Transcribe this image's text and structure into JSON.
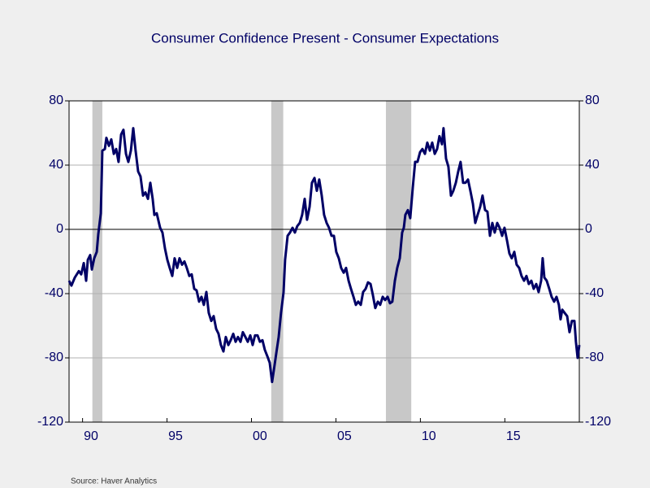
{
  "chart_data": {
    "type": "line",
    "title": "Consumer Confidence Present - Consumer Expectations",
    "source": "Source:  Haver Analytics",
    "x": [
      1989.2,
      1989.34,
      1989.54,
      1989.78,
      1989.92,
      1990.07,
      1990.21,
      1990.31,
      1990.45,
      1990.55,
      1990.69,
      1990.84,
      1990.93,
      1991.08,
      1991.17,
      1991.32,
      1991.41,
      1991.56,
      1991.7,
      1991.85,
      1991.99,
      1992.13,
      1992.28,
      1992.42,
      1992.57,
      1992.71,
      1992.86,
      1993.0,
      1993.14,
      1993.29,
      1993.43,
      1993.58,
      1993.72,
      1993.87,
      1994.01,
      1994.15,
      1994.25,
      1994.39,
      1994.59,
      1994.73,
      1994.88,
      1995.02,
      1995.16,
      1995.31,
      1995.45,
      1995.6,
      1995.74,
      1995.89,
      1996.03,
      1996.17,
      1996.32,
      1996.46,
      1996.61,
      1996.75,
      1996.9,
      1997.04,
      1997.18,
      1997.33,
      1997.47,
      1997.62,
      1997.76,
      1997.91,
      1998.05,
      1998.19,
      1998.34,
      1998.48,
      1998.63,
      1998.77,
      1998.92,
      1999.06,
      1999.2,
      1999.35,
      1999.49,
      1999.64,
      1999.78,
      1999.93,
      2000.07,
      2000.21,
      2000.36,
      2000.5,
      2000.65,
      2000.79,
      2000.94,
      2001.08,
      2001.22,
      2001.32,
      2001.47,
      2001.61,
      2001.75,
      2001.9,
      2001.99,
      2002.14,
      2002.28,
      2002.43,
      2002.57,
      2002.71,
      2002.86,
      2003.0,
      2003.15,
      2003.29,
      2003.44,
      2003.58,
      2003.73,
      2003.87,
      2004.01,
      2004.16,
      2004.3,
      2004.45,
      2004.59,
      2004.74,
      2004.88,
      2005.02,
      2005.17,
      2005.31,
      2005.46,
      2005.6,
      2005.75,
      2005.89,
      2006.04,
      2006.18,
      2006.32,
      2006.47,
      2006.61,
      2006.76,
      2006.9,
      2007.05,
      2007.19,
      2007.33,
      2007.48,
      2007.62,
      2007.77,
      2007.91,
      2008.06,
      2008.2,
      2008.34,
      2008.49,
      2008.63,
      2008.78,
      2008.92,
      2009.02,
      2009.11,
      2009.26,
      2009.4,
      2009.55,
      2009.69,
      2009.83,
      2009.98,
      2010.12,
      2010.27,
      2010.41,
      2010.56,
      2010.7,
      2010.85,
      2010.99,
      2011.13,
      2011.28,
      2011.37,
      2011.52,
      2011.66,
      2011.81,
      2011.95,
      2012.1,
      2012.24,
      2012.38,
      2012.53,
      2012.67,
      2012.82,
      2012.96,
      2013.11,
      2013.25,
      2013.39,
      2013.54,
      2013.68,
      2013.83,
      2013.97,
      2014.12,
      2014.26,
      2014.4,
      2014.55,
      2014.69,
      2014.84,
      2014.98,
      2015.13,
      2015.27,
      2015.41,
      2015.56,
      2015.7,
      2015.85,
      2015.99,
      2016.14,
      2016.28,
      2016.42,
      2016.57,
      2016.71,
      2016.86,
      2017.0,
      2017.15,
      2017.24,
      2017.34,
      2017.48,
      2017.63,
      2017.77,
      2017.92,
      2018.06,
      2018.2,
      2018.3,
      2018.4,
      2018.54,
      2018.69,
      2018.83,
      2018.97,
      2019.12,
      2019.21,
      2019.31,
      2019.41
    ],
    "series": [
      {
        "color": "#000066",
        "values": [
          -32,
          -35,
          -30,
          -26,
          -28,
          -21,
          -32,
          -19,
          -16,
          -25,
          -18,
          -14,
          -3,
          10,
          49,
          50,
          57,
          52,
          56,
          47,
          50,
          42,
          59,
          62,
          47,
          42,
          49,
          63,
          49,
          36,
          33,
          21,
          23,
          19,
          29,
          19,
          9,
          10,
          1,
          -2,
          -12,
          -19,
          -24,
          -29,
          -18,
          -24,
          -18,
          -22,
          -20,
          -24,
          -29,
          -28,
          -37,
          -38,
          -45,
          -42,
          -47,
          -39,
          -52,
          -57,
          -54,
          -62,
          -65,
          -72,
          -76,
          -67,
          -72,
          -69,
          -65,
          -70,
          -67,
          -70,
          -64,
          -67,
          -70,
          -66,
          -72,
          -66,
          -66,
          -70,
          -69,
          -75,
          -79,
          -83,
          -95,
          -88,
          -77,
          -67,
          -52,
          -39,
          -19,
          -4,
          -2,
          1,
          -2,
          2,
          4,
          9,
          19,
          6,
          14,
          29,
          32,
          24,
          31,
          21,
          9,
          4,
          1,
          -4,
          -4,
          -14,
          -18,
          -24,
          -27,
          -24,
          -32,
          -37,
          -42,
          -47,
          -45,
          -47,
          -39,
          -37,
          -33,
          -34,
          -41,
          -49,
          -45,
          -47,
          -42,
          -44,
          -42,
          -46,
          -45,
          -32,
          -24,
          -18,
          -2,
          1,
          9,
          12,
          7,
          26,
          42,
          42,
          48,
          50,
          47,
          54,
          49,
          54,
          47,
          50,
          58,
          53,
          63,
          44,
          39,
          21,
          24,
          29,
          36,
          42,
          29,
          29,
          31,
          24,
          16,
          4,
          9,
          14,
          21,
          12,
          11,
          -4,
          4,
          -2,
          4,
          1,
          -4,
          1,
          -7,
          -15,
          -18,
          -14,
          -22,
          -24,
          -29,
          -32,
          -29,
          -34,
          -32,
          -37,
          -34,
          -39,
          -32,
          -18,
          -30,
          -32,
          -37,
          -42,
          -45,
          -42,
          -47,
          -56,
          -50,
          -52,
          -54,
          -64,
          -57,
          -57,
          -70,
          -80,
          -72
        ]
      }
    ],
    "recessions": [
      [
        1990.58,
        1991.17
      ],
      [
        2001.17,
        2001.88
      ],
      [
        2007.96,
        2009.46
      ]
    ],
    "xlim": [
      1989.2,
      2019.41
    ],
    "xticks": [
      {
        "value": 1990,
        "label": "90"
      },
      {
        "value": 1995,
        "label": "95"
      },
      {
        "value": 2000,
        "label": "00"
      },
      {
        "value": 2005,
        "label": "05"
      },
      {
        "value": 2010,
        "label": "10"
      },
      {
        "value": 2015,
        "label": "15"
      }
    ],
    "ylim": [
      -120,
      80
    ],
    "yticks": [
      -120,
      -80,
      -40,
      0,
      40,
      80
    ],
    "y2lim": [
      -120,
      80
    ],
    "y2ticks": [
      -120,
      -80,
      -40,
      0,
      40,
      80
    ],
    "grid": true
  }
}
